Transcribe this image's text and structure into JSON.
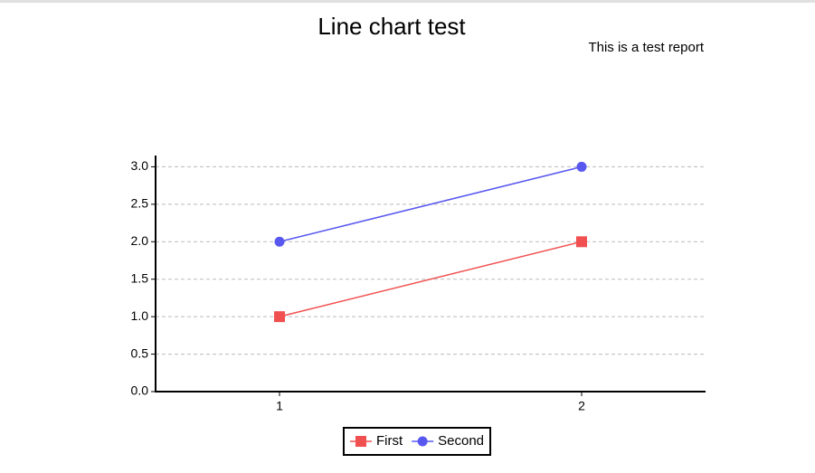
{
  "chart_data": {
    "type": "line",
    "title": "Line chart test",
    "subtitle": "This is a test report",
    "categories": [
      "1",
      "2"
    ],
    "series": [
      {
        "name": "First",
        "color": "#f05050",
        "marker": "square",
        "values": [
          1,
          2
        ]
      },
      {
        "name": "Second",
        "color": "#5858f0",
        "marker": "circle",
        "values": [
          2,
          3
        ]
      }
    ],
    "ylim": [
      0,
      3.15
    ],
    "yticks": [
      {
        "value": 0,
        "label": "0.0"
      },
      {
        "value": 0.5,
        "label": "0.5"
      },
      {
        "value": 1,
        "label": "1.0"
      },
      {
        "value": 1.5,
        "label": "1.5"
      },
      {
        "value": 2,
        "label": "2.0"
      },
      {
        "value": 2.5,
        "label": "2.5"
      },
      {
        "value": 3,
        "label": "3.0"
      }
    ],
    "grid": true,
    "legend": "bottom"
  }
}
